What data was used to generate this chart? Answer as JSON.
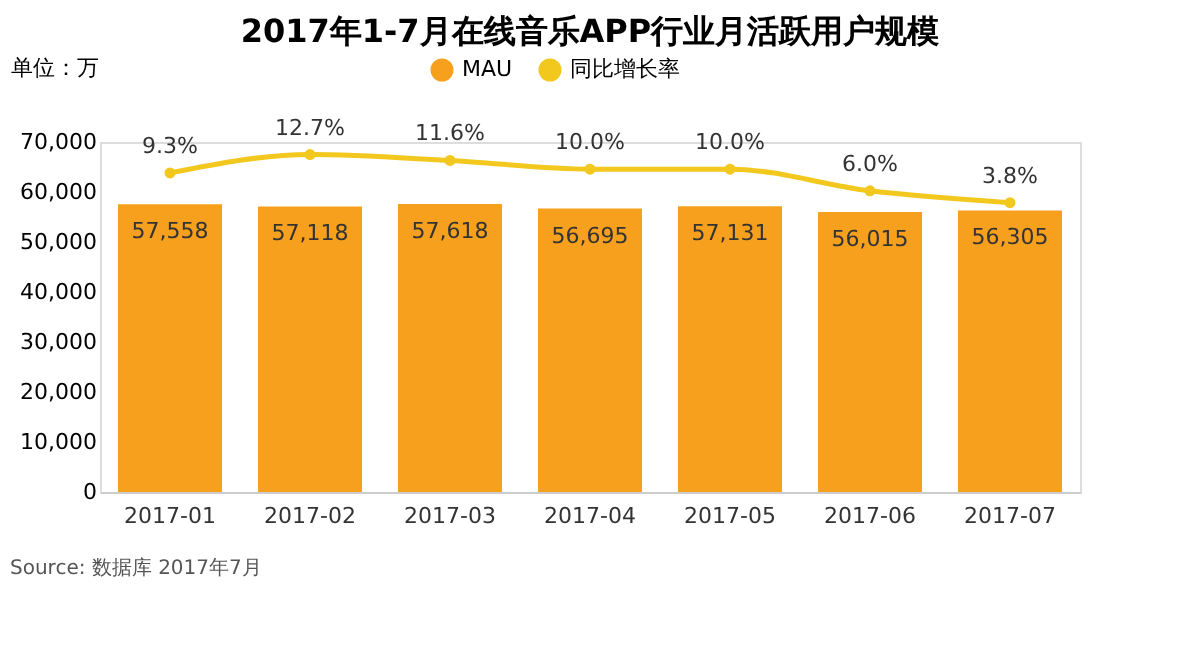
{
  "chart_data": {
    "type": "bar",
    "title": "2017年1-7月在线音乐APP行业月活跃用户规模",
    "ylabel": "单位：万",
    "categories": [
      "2017-01",
      "2017-02",
      "2017-03",
      "2017-04",
      "2017-05",
      "2017-06",
      "2017-07"
    ],
    "series": [
      {
        "name": "MAU",
        "color": "#f7a01e",
        "values": [
          57558,
          57118,
          57618,
          56695,
          57131,
          56015,
          56305
        ],
        "value_labels": [
          "57,558",
          "57,118",
          "57,618",
          "56,695",
          "57,131",
          "56,015",
          "56,305"
        ]
      },
      {
        "name": "同比增长率",
        "type": "line",
        "axis": "y2",
        "color": "#f2c81f",
        "values": [
          9.3,
          12.7,
          11.6,
          10.0,
          10.0,
          6.0,
          3.8
        ],
        "value_labels": [
          "9.3%",
          "12.7%",
          "11.6%",
          "10.0%",
          "10.0%",
          "6.0%",
          "3.8%"
        ]
      }
    ],
    "ylim": [
      0,
      70000
    ],
    "yticks": [
      0,
      {
        "value": 10000,
        "label": "10,000"
      },
      {
        "value": 20000,
        "label": "20,000"
      },
      {
        "value": 30000,
        "label": "30,000"
      },
      {
        "value": 40000,
        "label": "40,000"
      },
      {
        "value": 50000,
        "label": "50,000"
      },
      {
        "value": 60000,
        "label": "60,000"
      },
      {
        "value": 70000,
        "label": "70,000"
      }
    ],
    "marker": "circle",
    "legend": "top",
    "grid": false,
    "annotations": [
      "Source:   数据库 2017年7月"
    ]
  }
}
